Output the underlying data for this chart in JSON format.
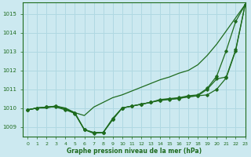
{
  "title": "Graphe pression niveau de la mer (hPa)",
  "bg_color": "#cce9f0",
  "grid_color": "#b0d8e2",
  "line_color": "#1e6b1e",
  "xlim": [
    -0.5,
    23
  ],
  "ylim": [
    1008.5,
    1015.6
  ],
  "yticks": [
    1009,
    1010,
    1011,
    1012,
    1013,
    1014,
    1015
  ],
  "xticks": [
    0,
    1,
    2,
    3,
    4,
    5,
    6,
    7,
    8,
    9,
    10,
    11,
    12,
    13,
    14,
    15,
    16,
    17,
    18,
    19,
    20,
    21,
    22,
    23
  ],
  "line1_x": [
    0,
    1,
    2,
    3,
    4,
    5,
    6,
    7,
    8,
    9,
    10,
    11,
    12,
    13,
    14,
    15,
    16,
    17,
    18,
    19,
    20,
    21,
    22,
    23
  ],
  "line1_y": [
    1009.9,
    1010.0,
    1010.0,
    1010.1,
    1010.0,
    1009.75,
    1009.6,
    1010.05,
    1010.3,
    1010.55,
    1010.7,
    1010.9,
    1011.1,
    1011.3,
    1011.5,
    1011.65,
    1011.85,
    1012.0,
    1012.3,
    1012.8,
    1013.4,
    1014.1,
    1014.8,
    1015.5
  ],
  "line2_x": [
    0,
    1,
    2,
    3,
    4,
    5,
    6,
    7,
    8,
    9,
    10,
    11,
    12,
    13,
    14,
    15,
    16,
    17,
    18,
    19,
    20,
    21,
    22,
    23
  ],
  "line2_y": [
    1009.9,
    1010.0,
    1010.05,
    1010.1,
    1009.95,
    1009.75,
    1008.85,
    1008.7,
    1008.7,
    1009.45,
    1010.0,
    1010.1,
    1010.2,
    1010.3,
    1010.4,
    1010.45,
    1010.5,
    1010.6,
    1010.65,
    1010.7,
    1011.0,
    1011.6,
    1013.05,
    1015.5
  ],
  "line3_x": [
    0,
    1,
    2,
    3,
    4,
    5,
    6,
    7,
    8,
    9,
    10,
    11,
    12,
    13,
    14,
    15,
    16,
    17,
    18,
    19,
    20,
    21,
    22,
    23
  ],
  "line3_y": [
    1009.9,
    1010.0,
    1010.05,
    1010.1,
    1009.95,
    1009.7,
    1008.85,
    1008.65,
    1008.7,
    1009.4,
    1010.0,
    1010.1,
    1010.2,
    1010.3,
    1010.45,
    1010.5,
    1010.55,
    1010.65,
    1010.7,
    1011.05,
    1011.7,
    1013.05,
    1014.6,
    1015.5
  ],
  "line4_x": [
    0,
    1,
    2,
    3,
    4,
    5,
    6,
    7,
    8,
    9,
    10,
    11,
    12,
    13,
    14,
    15,
    16,
    17,
    18,
    19,
    20,
    21,
    22,
    23
  ],
  "line4_y": [
    1009.9,
    1010.0,
    1010.05,
    1010.05,
    1009.9,
    1009.72,
    1008.85,
    1008.68,
    1008.7,
    1009.38,
    1010.0,
    1010.1,
    1010.2,
    1010.3,
    1010.42,
    1010.48,
    1010.52,
    1010.6,
    1010.65,
    1011.0,
    1011.55,
    1011.65,
    1013.1,
    1015.5
  ]
}
